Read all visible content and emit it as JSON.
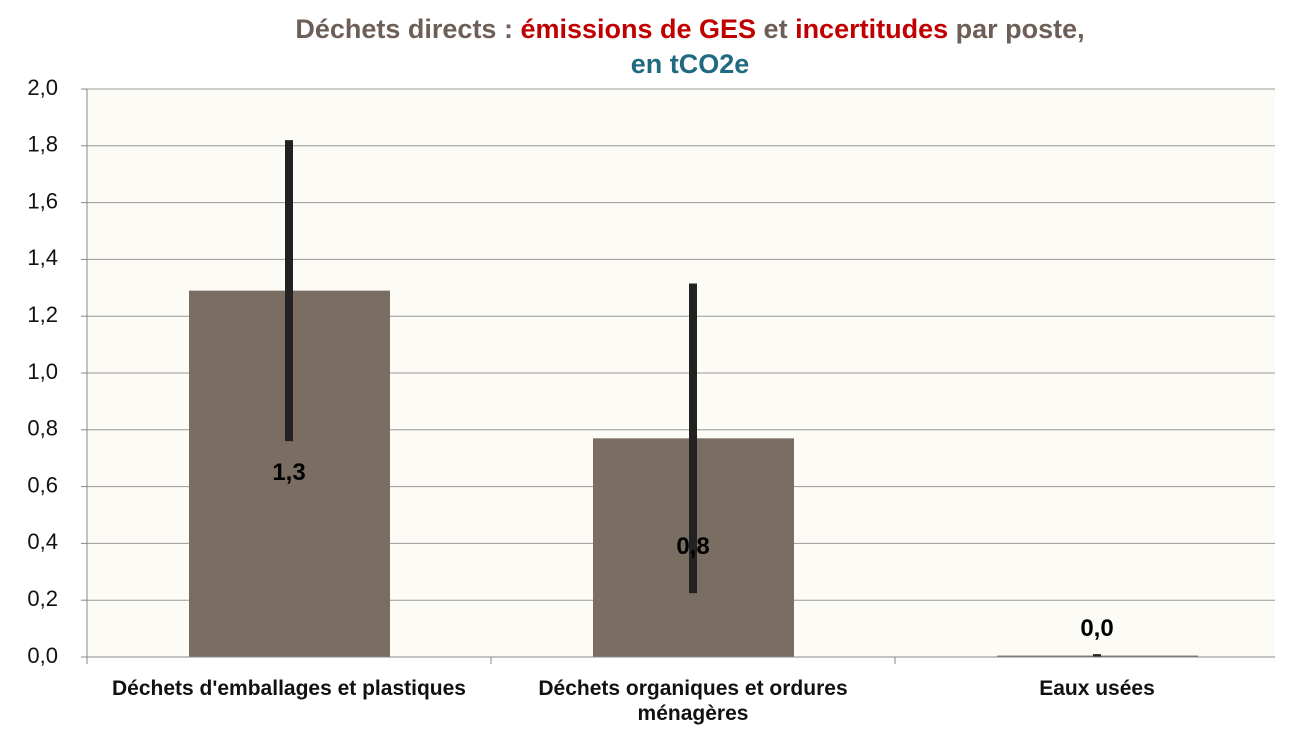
{
  "chart_data": {
    "type": "bar",
    "title": [
      {
        "text": "Déchets directs : ",
        "color": "#6d5f57"
      },
      {
        "text": "émissions de GES",
        "color": "#c00000"
      },
      {
        "text": " et ",
        "color": "#6d5f57"
      },
      {
        "text": "incertitudes",
        "color": "#c00000"
      },
      {
        "text": " par poste,",
        "color": "#6d5f57"
      }
    ],
    "subtitle": {
      "text": "en tCO2e",
      "color": "#1f6a80"
    },
    "categories": [
      "Déchets d'emballages et plastiques",
      "Déchets organiques et ordures ménagères",
      "Eaux usées"
    ],
    "values": [
      1.29,
      0.77,
      0.005
    ],
    "value_labels": [
      "1,3",
      "0,8",
      "0,0"
    ],
    "errors": [
      0.53,
      0.545,
      0.005
    ],
    "color": "#7a6e63",
    "error_color": "#222222",
    "ylim": [
      0,
      2
    ],
    "yticks": [
      {
        "value": 0,
        "label": "0,0"
      },
      {
        "value": 0.2,
        "label": "0,2"
      },
      {
        "value": 0.4,
        "label": "0,4"
      },
      {
        "value": 0.6,
        "label": "0,6"
      },
      {
        "value": 0.8,
        "label": "0,8"
      },
      {
        "value": 1,
        "label": "1,0"
      },
      {
        "value": 1.2,
        "label": "1,2"
      },
      {
        "value": 1.4,
        "label": "1,4"
      },
      {
        "value": 1.6,
        "label": "1,6"
      },
      {
        "value": 1.8,
        "label": "1,8"
      },
      {
        "value": 2,
        "label": "2,0"
      }
    ],
    "grid": true
  }
}
